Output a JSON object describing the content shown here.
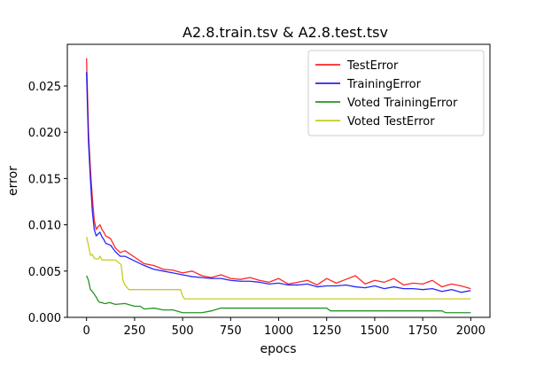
{
  "chart_data": {
    "type": "line",
    "title": "A2.8.train.tsv & A2.8.test.tsv",
    "xlabel": "epocs",
    "ylabel": "error",
    "xlim": [
      -100,
      2100
    ],
    "ylim": [
      0.0,
      0.0295
    ],
    "x_ticks": [
      0,
      250,
      500,
      750,
      1000,
      1250,
      1500,
      1750,
      2000
    ],
    "x_tick_labels": [
      "0",
      "250",
      "500",
      "750",
      "1000",
      "1250",
      "1500",
      "1750",
      "2000"
    ],
    "y_ticks": [
      0.0,
      0.005,
      0.01,
      0.015,
      0.02,
      0.025
    ],
    "y_tick_labels": [
      "0.000",
      "0.005",
      "0.010",
      "0.015",
      "0.020",
      "0.025"
    ],
    "grid": false,
    "legend_position": "top-right",
    "series": [
      {
        "name": "TestError",
        "color": "#ff0000",
        "x": [
          0,
          10,
          20,
          30,
          40,
          50,
          60,
          70,
          80,
          90,
          100,
          125,
          150,
          175,
          200,
          250,
          300,
          350,
          400,
          450,
          500,
          550,
          600,
          650,
          700,
          750,
          800,
          850,
          900,
          950,
          1000,
          1050,
          1100,
          1150,
          1200,
          1250,
          1300,
          1350,
          1400,
          1450,
          1500,
          1550,
          1600,
          1650,
          1700,
          1750,
          1800,
          1850,
          1900,
          1950,
          2000
        ],
        "values": [
          0.028,
          0.02,
          0.016,
          0.013,
          0.0105,
          0.0095,
          0.0098,
          0.01,
          0.0095,
          0.0092,
          0.0088,
          0.0085,
          0.0075,
          0.007,
          0.0072,
          0.0065,
          0.0058,
          0.0056,
          0.0052,
          0.0051,
          0.0048,
          0.005,
          0.0045,
          0.0043,
          0.0046,
          0.0042,
          0.0041,
          0.0043,
          0.004,
          0.0038,
          0.0042,
          0.0036,
          0.0038,
          0.004,
          0.0035,
          0.0042,
          0.0037,
          0.0041,
          0.0045,
          0.0036,
          0.004,
          0.0038,
          0.0042,
          0.0035,
          0.0037,
          0.0036,
          0.004,
          0.0033,
          0.0036,
          0.0034,
          0.0031
        ]
      },
      {
        "name": "TrainingError",
        "color": "#0000ff",
        "x": [
          0,
          10,
          20,
          30,
          40,
          50,
          60,
          70,
          80,
          90,
          100,
          125,
          150,
          175,
          200,
          250,
          300,
          350,
          400,
          450,
          500,
          550,
          600,
          650,
          700,
          750,
          800,
          850,
          900,
          950,
          1000,
          1050,
          1100,
          1150,
          1200,
          1250,
          1300,
          1350,
          1400,
          1450,
          1500,
          1550,
          1600,
          1650,
          1700,
          1750,
          1800,
          1850,
          1900,
          1950,
          2000
        ],
        "values": [
          0.0265,
          0.019,
          0.015,
          0.0115,
          0.0095,
          0.0088,
          0.009,
          0.0092,
          0.0087,
          0.0084,
          0.008,
          0.0078,
          0.0071,
          0.0066,
          0.0066,
          0.0061,
          0.0056,
          0.0052,
          0.005,
          0.0048,
          0.0046,
          0.0044,
          0.0043,
          0.0042,
          0.0042,
          0.004,
          0.0039,
          0.0039,
          0.0038,
          0.0036,
          0.0037,
          0.0035,
          0.0035,
          0.0036,
          0.0033,
          0.0034,
          0.0034,
          0.0035,
          0.0033,
          0.0032,
          0.0034,
          0.0031,
          0.0033,
          0.0031,
          0.0031,
          0.003,
          0.0031,
          0.0028,
          0.003,
          0.0027,
          0.0029
        ]
      },
      {
        "name": "Voted TrainingError",
        "color": "#008000",
        "x": [
          0,
          10,
          20,
          30,
          40,
          50,
          60,
          70,
          80,
          90,
          100,
          120,
          150,
          200,
          250,
          280,
          300,
          350,
          400,
          450,
          500,
          550,
          600,
          650,
          700,
          750,
          1000,
          1250,
          1270,
          1500,
          1750,
          1850,
          1870,
          2000
        ],
        "values": [
          0.0045,
          0.004,
          0.003,
          0.0028,
          0.0025,
          0.0022,
          0.0018,
          0.0016,
          0.0016,
          0.0015,
          0.0015,
          0.0016,
          0.0014,
          0.0015,
          0.0012,
          0.0012,
          0.0009,
          0.001,
          0.0008,
          0.0008,
          0.0005,
          0.0005,
          0.0005,
          0.0007,
          0.001,
          0.001,
          0.001,
          0.001,
          0.0007,
          0.0007,
          0.0007,
          0.0007,
          0.0005,
          0.0005
        ]
      },
      {
        "name": "Voted TestError",
        "color": "#bfbf00",
        "x": [
          0,
          10,
          20,
          30,
          40,
          50,
          60,
          70,
          80,
          90,
          100,
          150,
          180,
          190,
          200,
          220,
          250,
          300,
          350,
          400,
          490,
          500,
          510,
          550,
          600,
          700,
          1000,
          1500,
          2000
        ],
        "values": [
          0.0087,
          0.0078,
          0.0067,
          0.0068,
          0.0064,
          0.0063,
          0.0063,
          0.0066,
          0.0062,
          0.0062,
          0.0062,
          0.0062,
          0.0057,
          0.004,
          0.0035,
          0.003,
          0.003,
          0.003,
          0.003,
          0.003,
          0.003,
          0.0023,
          0.002,
          0.002,
          0.002,
          0.002,
          0.002,
          0.002,
          0.002
        ]
      }
    ]
  }
}
